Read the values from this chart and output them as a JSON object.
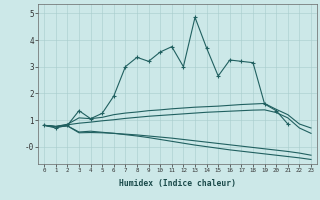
{
  "x": [
    0,
    1,
    2,
    3,
    4,
    5,
    6,
    7,
    8,
    9,
    10,
    11,
    12,
    13,
    14,
    15,
    16,
    17,
    18,
    19,
    20,
    21,
    22,
    23
  ],
  "line_main": [
    0.8,
    0.7,
    0.8,
    1.35,
    1.05,
    1.25,
    1.9,
    3.0,
    3.35,
    3.2,
    3.55,
    3.75,
    3.0,
    4.85,
    3.7,
    2.65,
    3.25,
    3.2,
    3.15,
    1.6,
    1.35,
    0.85,
    null,
    null
  ],
  "line_upper": [
    0.8,
    0.76,
    0.84,
    1.08,
    1.05,
    1.1,
    1.2,
    1.26,
    1.3,
    1.35,
    1.38,
    1.42,
    1.45,
    1.48,
    1.5,
    1.52,
    1.55,
    1.58,
    1.6,
    1.62,
    1.4,
    1.2,
    0.85,
    0.7
  ],
  "line_mid": [
    0.8,
    0.76,
    0.82,
    0.88,
    0.92,
    0.97,
    1.01,
    1.06,
    1.1,
    1.14,
    1.17,
    1.2,
    1.23,
    1.26,
    1.29,
    1.31,
    1.33,
    1.35,
    1.37,
    1.38,
    1.28,
    1.08,
    0.7,
    0.5
  ],
  "line_lower": [
    0.8,
    0.75,
    0.78,
    0.52,
    0.53,
    0.52,
    0.5,
    0.47,
    0.44,
    0.4,
    0.36,
    0.32,
    0.27,
    0.22,
    0.17,
    0.12,
    0.07,
    0.02,
    -0.03,
    -0.08,
    -0.13,
    -0.18,
    -0.24,
    -0.32
  ],
  "line_bottom": [
    0.8,
    0.75,
    0.78,
    0.55,
    0.58,
    0.54,
    0.5,
    0.45,
    0.4,
    0.34,
    0.27,
    0.2,
    0.13,
    0.06,
    0.0,
    -0.06,
    -0.12,
    -0.17,
    -0.22,
    -0.27,
    -0.32,
    -0.37,
    -0.42,
    -0.48
  ],
  "color": "#206060",
  "bg_color": "#cce8e8",
  "ylim": [
    -0.65,
    5.35
  ],
  "xlim": [
    -0.5,
    23.5
  ],
  "xlabel": "Humidex (Indice chaleur)",
  "marker": "+"
}
